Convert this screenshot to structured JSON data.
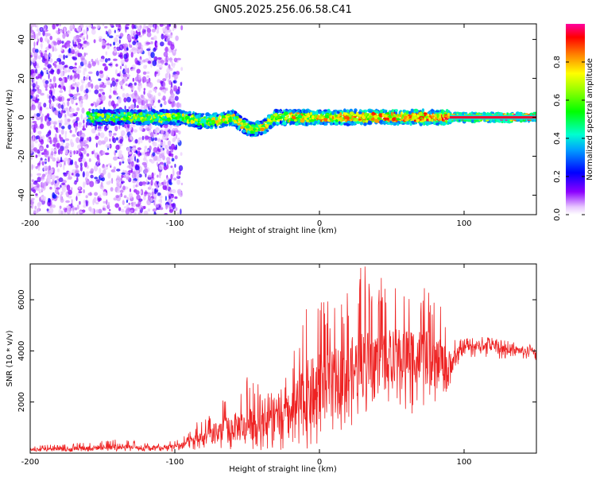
{
  "title": "GN05.2025.256.06.58.C41",
  "colors": {
    "snr_line": "#ee2222",
    "axis": "#000000",
    "background": "#ffffff"
  },
  "chart_data": [
    {
      "type": "heatmap",
      "title": "GN05.2025.256.06.58.C41",
      "xlabel": "Height of straight line (km)",
      "ylabel": "Frequency (Hz)",
      "xlim": [
        -200,
        150
      ],
      "ylim": [
        -50,
        48
      ],
      "xticks": [
        -200,
        -100,
        0,
        100
      ],
      "yticks": [
        -40,
        -20,
        0,
        20,
        40
      ],
      "colorbar": {
        "label": "Normalized spectral amplitude",
        "range": [
          0,
          1
        ],
        "ticks": [
          0.0,
          0.2,
          0.4,
          0.6,
          0.8
        ],
        "colormap": "rainbow (white → purple → blue → cyan → green → yellow → red)"
      },
      "features": [
        {
          "name": "broadband noise",
          "x_range": [
            -200,
            -95
          ],
          "freq_range": [
            -50,
            48
          ],
          "amplitude": 0.1
        },
        {
          "name": "carrier band",
          "x_range": [
            -160,
            150
          ],
          "freq_center": 0,
          "freq_halfwidth": 3,
          "amplitude_range": [
            0.3,
            1.0
          ]
        },
        {
          "name": "doppler dip",
          "x_range": [
            -60,
            -30
          ],
          "freq_min": -10
        }
      ]
    },
    {
      "type": "line",
      "title": "",
      "xlabel": "Height of straight line (km)",
      "ylabel": "SNR (10 * v/v)",
      "xlim": [
        -200,
        150
      ],
      "ylim": [
        0,
        7400
      ],
      "xticks": [
        -200,
        -100,
        0,
        100
      ],
      "yticks": [
        2000,
        4000,
        6000
      ],
      "series": [
        {
          "name": "SNR",
          "x": [
            -200,
            -180,
            -160,
            -140,
            -120,
            -100,
            -90,
            -80,
            -70,
            -60,
            -50,
            -40,
            -30,
            -20,
            -10,
            0,
            10,
            20,
            30,
            40,
            50,
            60,
            70,
            80,
            90,
            100,
            110,
            120,
            130,
            140,
            150
          ],
          "y_base": [
            150,
            170,
            200,
            260,
            220,
            250,
            450,
            650,
            850,
            1000,
            1100,
            1200,
            1300,
            1600,
            2100,
            2600,
            2900,
            3200,
            3500,
            3700,
            3800,
            3900,
            3800,
            3600,
            3500,
            4100,
            4200,
            4150,
            4100,
            4000,
            4000
          ],
          "y_peak": [
            300,
            350,
            450,
            600,
            400,
            500,
            1000,
            1400,
            1900,
            2500,
            3000,
            2600,
            2300,
            3600,
            6700,
            6200,
            5800,
            6500,
            7400,
            7000,
            6600,
            6500,
            6500,
            6600,
            4800,
            4500,
            4600,
            4500,
            4400,
            4300,
            4300
          ],
          "y_trough": [
            50,
            50,
            60,
            80,
            60,
            60,
            60,
            200,
            150,
            100,
            100,
            100,
            100,
            100,
            150,
            300,
            800,
            1000,
            1400,
            2000,
            2000,
            1500,
            1600,
            2000,
            2500,
            3800,
            3700,
            3700,
            3600,
            3600,
            3600
          ]
        }
      ]
    }
  ]
}
